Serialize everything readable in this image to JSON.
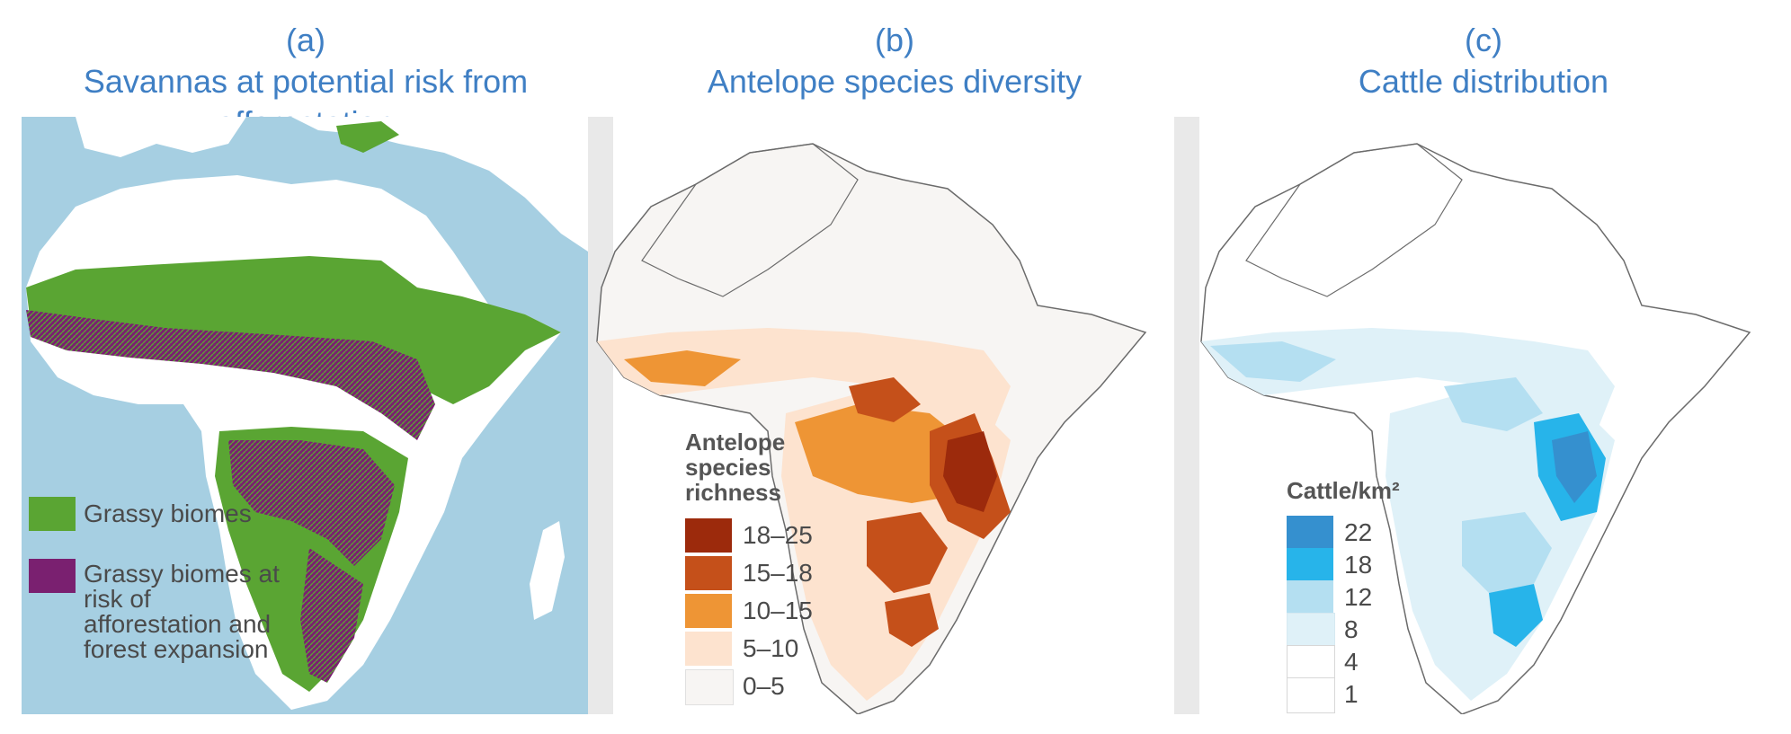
{
  "panels": [
    {
      "letter": "(a)",
      "title": "Savannas at potential risk from afforestation",
      "legend": [
        {
          "label": "Grassy biomes",
          "color": "#5aa533"
        },
        {
          "label": "Grassy biomes at risk of afforestation and forest expansion",
          "color": "#7a2070"
        }
      ]
    },
    {
      "letter": "(b)",
      "title": "Antelope species diversity",
      "legend_title": "Antelope species richness",
      "legend": [
        {
          "label": "18–25",
          "color": "#9c2a0c"
        },
        {
          "label": "15–18",
          "color": "#c5501a"
        },
        {
          "label": "10–15",
          "color": "#ee9535"
        },
        {
          "label": "5–10",
          "color": "#fde3cf"
        },
        {
          "label": "0–5",
          "color": "#f7f5f3"
        }
      ]
    },
    {
      "letter": "(c)",
      "title": "Cattle distribution",
      "legend_title": "Cattle/km²",
      "legend": [
        {
          "label": "22",
          "color": "#3590cf"
        },
        {
          "label": "18",
          "color": "#27b4ea"
        },
        {
          "label": "12",
          "color": "#b4dff1"
        },
        {
          "label": "8",
          "color": "#dff1f8"
        },
        {
          "label": "4",
          "color": "#ffffff"
        },
        {
          "label": "1",
          "color": "#ffffff"
        }
      ]
    }
  ],
  "colors": {
    "title": "#3f7fc4",
    "ocean": "#a6cfe2",
    "land": "#ffffff",
    "border": "#6b6b6b"
  }
}
